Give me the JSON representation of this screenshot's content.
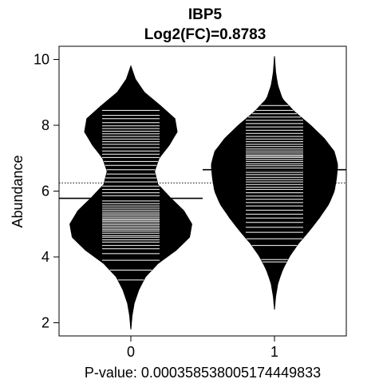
{
  "chart_data": {
    "type": "beanplot",
    "title": "IBP5",
    "subtitle": "Log2(FC)=0.8783",
    "xlabel": "P-value: 0.000358538005174449833",
    "ylabel": "Abundance",
    "categories": [
      "0",
      "1"
    ],
    "ylim": [
      1.6,
      10.4
    ],
    "yticks": [
      "2",
      "4",
      "6",
      "8",
      "10"
    ],
    "overall_mean": 6.25,
    "grid": false,
    "colors": {
      "bean": "#000000",
      "line": "#ffffff",
      "background": "#ffffff"
    },
    "groups": [
      {
        "category": "0",
        "mean": 5.78,
        "range": [
          1.8,
          9.8
        ],
        "density": [
          [
            1.8,
            0.0
          ],
          [
            2.2,
            0.01
          ],
          [
            2.6,
            0.03
          ],
          [
            3.0,
            0.07
          ],
          [
            3.4,
            0.13
          ],
          [
            3.8,
            0.24
          ],
          [
            4.2,
            0.4
          ],
          [
            4.6,
            0.52
          ],
          [
            5.0,
            0.54
          ],
          [
            5.4,
            0.47
          ],
          [
            5.8,
            0.35
          ],
          [
            6.2,
            0.24
          ],
          [
            6.6,
            0.21
          ],
          [
            7.0,
            0.25
          ],
          [
            7.4,
            0.34
          ],
          [
            7.8,
            0.41
          ],
          [
            8.2,
            0.39
          ],
          [
            8.6,
            0.26
          ],
          [
            9.0,
            0.12
          ],
          [
            9.4,
            0.04
          ],
          [
            9.8,
            0.0
          ]
        ],
        "observations": [
          3.3,
          3.6,
          3.9,
          4.1,
          4.25,
          4.35,
          4.45,
          4.52,
          4.6,
          4.65,
          4.72,
          4.78,
          4.83,
          4.88,
          4.93,
          4.98,
          5.03,
          5.08,
          5.12,
          5.16,
          5.21,
          5.26,
          5.31,
          5.36,
          5.42,
          5.48,
          5.55,
          5.62,
          5.7,
          5.78,
          5.86,
          5.95,
          6.05,
          6.15,
          6.28,
          6.4,
          6.52,
          6.65,
          6.78,
          6.9,
          7.02,
          7.12,
          7.22,
          7.32,
          7.42,
          7.5,
          7.58,
          7.66,
          7.74,
          7.82,
          7.9,
          7.98,
          8.08,
          8.2,
          8.3,
          8.45
        ]
      },
      {
        "category": "1",
        "mean": 6.65,
        "range": [
          2.4,
          10.1
        ],
        "density": [
          [
            2.4,
            0.0
          ],
          [
            2.8,
            0.01
          ],
          [
            3.2,
            0.03
          ],
          [
            3.6,
            0.07
          ],
          [
            4.0,
            0.13
          ],
          [
            4.4,
            0.21
          ],
          [
            4.8,
            0.31
          ],
          [
            5.2,
            0.4
          ],
          [
            5.6,
            0.48
          ],
          [
            6.0,
            0.53
          ],
          [
            6.4,
            0.55
          ],
          [
            6.8,
            0.56
          ],
          [
            7.2,
            0.53
          ],
          [
            7.6,
            0.44
          ],
          [
            8.0,
            0.32
          ],
          [
            8.4,
            0.18
          ],
          [
            8.8,
            0.07
          ],
          [
            9.2,
            0.03
          ],
          [
            9.6,
            0.01
          ],
          [
            10.1,
            0.0
          ]
        ],
        "observations": [
          3.85,
          3.92,
          4.35,
          4.55,
          4.75,
          4.9,
          5.05,
          5.18,
          5.3,
          5.42,
          5.55,
          5.65,
          5.75,
          5.85,
          5.95,
          6.05,
          6.12,
          6.2,
          6.28,
          6.35,
          6.42,
          6.5,
          6.57,
          6.64,
          6.7,
          6.77,
          6.83,
          6.9,
          6.96,
          7.02,
          7.06,
          7.1,
          7.16,
          7.22,
          7.28,
          7.35,
          7.42,
          7.5,
          7.58,
          7.66,
          7.75,
          7.85,
          7.95,
          8.05,
          8.15,
          8.25,
          8.35,
          8.45,
          8.6
        ]
      }
    ]
  }
}
